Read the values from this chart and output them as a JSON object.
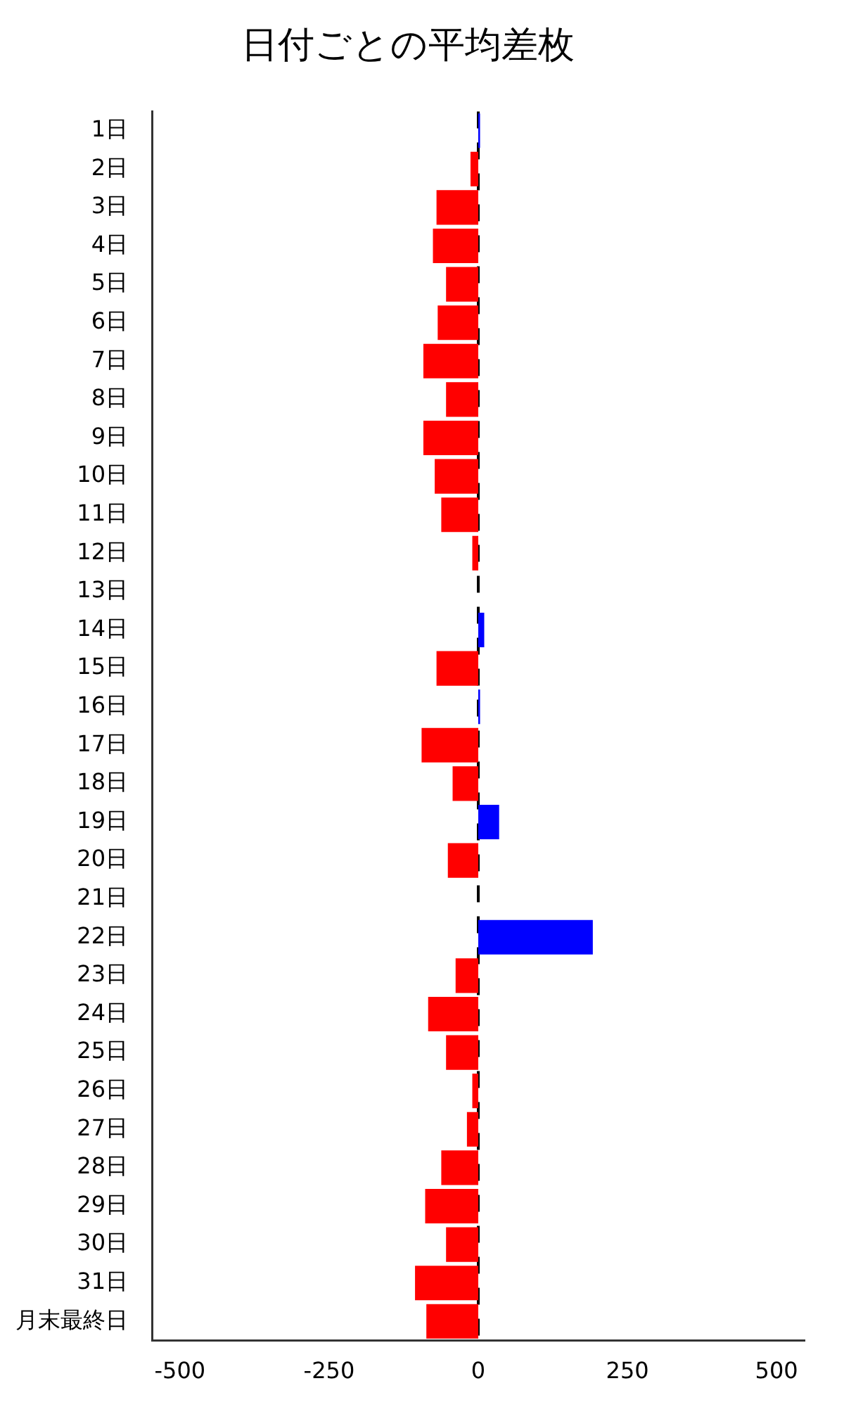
{
  "chart_data": {
    "type": "bar",
    "orientation": "horizontal",
    "title": "日付ごとの平均差枚",
    "categories": [
      "1日",
      "2日",
      "3日",
      "4日",
      "5日",
      "6日",
      "7日",
      "8日",
      "9日",
      "10日",
      "11日",
      "12日",
      "13日",
      "14日",
      "15日",
      "16日",
      "17日",
      "18日",
      "19日",
      "20日",
      "21日",
      "22日",
      "23日",
      "24日",
      "25日",
      "26日",
      "27日",
      "28日",
      "29日",
      "30日",
      "31日",
      "月末最終日"
    ],
    "values": [
      3,
      -13,
      -70,
      -76,
      -54,
      -68,
      -92,
      -54,
      -92,
      -73,
      -62,
      -10,
      null,
      10,
      -70,
      3,
      -95,
      -43,
      35,
      -51,
      0,
      192,
      -38,
      -84,
      -54,
      -10,
      -19,
      -62,
      -89,
      -54,
      -106,
      -87
    ],
    "colors": [
      "#0000ff",
      "#ff0000",
      "#ff0000",
      "#ff0000",
      "#ff0000",
      "#ff0000",
      "#ff0000",
      "#ff0000",
      "#ff0000",
      "#ff0000",
      "#ff0000",
      "#ff0000",
      "#ff0000",
      "#0000ff",
      "#ff0000",
      "#0000ff",
      "#ff0000",
      "#ff0000",
      "#0000ff",
      "#ff0000",
      "#ff0000",
      "#0000ff",
      "#ff0000",
      "#ff0000",
      "#ff0000",
      "#ff0000",
      "#ff0000",
      "#ff0000",
      "#ff0000",
      "#ff0000",
      "#ff0000",
      "#ff0000"
    ],
    "xlim": [
      -547,
      547
    ],
    "xticks": [
      -500,
      -250,
      0,
      250,
      500
    ],
    "ref_lines": [
      {
        "axis": "x",
        "value": 0,
        "color": "#000000",
        "line_style": "dashed"
      }
    ],
    "grid": false,
    "legend": false
  }
}
